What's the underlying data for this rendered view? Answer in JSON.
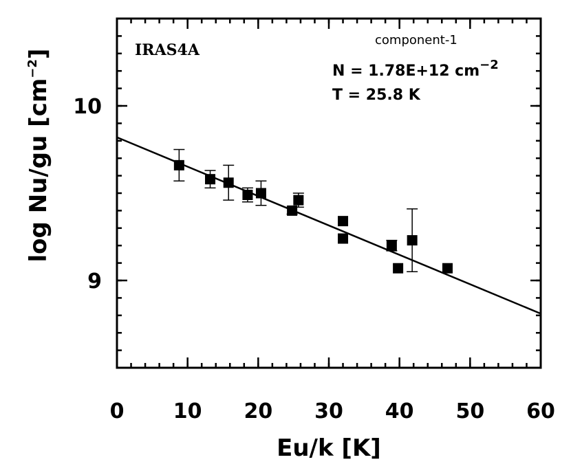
{
  "chart_data": {
    "type": "scatter",
    "source_label": "IRAS4A",
    "component_label": "component-1",
    "fit_N": {
      "prefix": "N = 1.78E+12 cm",
      "exponent": "−2"
    },
    "fit_T": "T = 25.8 K",
    "xlabel": "Eu/k [K]",
    "ylabel": {
      "main": "log Nu/gu [cm",
      "exponent": "−2",
      "close": "]"
    },
    "xlim": [
      0,
      60
    ],
    "ylim": [
      8.5,
      10.5
    ],
    "x_ticks": [
      0,
      10,
      20,
      30,
      40,
      50,
      60
    ],
    "y_ticks": [
      9,
      10
    ],
    "x_minor_step": 2,
    "y_minor_step": 0.1,
    "x_tick_labels": [
      "0",
      "10",
      "20",
      "30",
      "40",
      "50",
      "60"
    ],
    "y_tick_labels": [
      "9",
      "10"
    ],
    "fit_line": {
      "x": [
        0,
        60
      ],
      "y": [
        9.82,
        8.81
      ]
    },
    "points": [
      {
        "x": 8.8,
        "y": 9.66,
        "err": 0.09
      },
      {
        "x": 13.2,
        "y": 9.58,
        "err": 0.05
      },
      {
        "x": 15.8,
        "y": 9.56,
        "err": 0.1
      },
      {
        "x": 18.5,
        "y": 9.49,
        "err": 0.04
      },
      {
        "x": 20.4,
        "y": 9.5,
        "err": 0.07
      },
      {
        "x": 24.8,
        "y": 9.4,
        "err": 0.02
      },
      {
        "x": 25.7,
        "y": 9.46,
        "err": 0.04
      },
      {
        "x": 32.0,
        "y": 9.34,
        "err": 0
      },
      {
        "x": 32.0,
        "y": 9.24,
        "err": 0
      },
      {
        "x": 38.9,
        "y": 9.2,
        "err": 0.03
      },
      {
        "x": 39.8,
        "y": 9.07,
        "err": 0
      },
      {
        "x": 41.8,
        "y": 9.23,
        "err": 0.18
      },
      {
        "x": 46.8,
        "y": 9.07,
        "err": 0
      }
    ]
  }
}
